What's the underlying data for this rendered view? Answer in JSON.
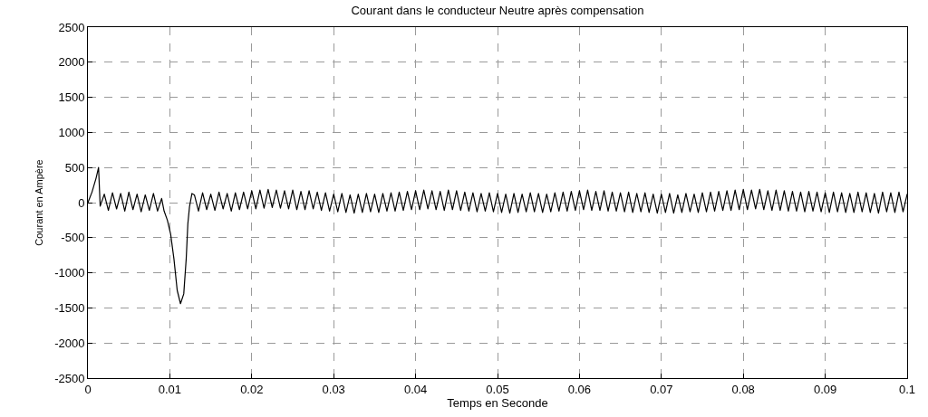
{
  "chart_data": {
    "type": "line",
    "title": "Courant dans le conducteur Neutre après compensation",
    "xlabel": "Temps en Seconde",
    "ylabel": "Courant en Ampère",
    "xlim": [
      0,
      0.1
    ],
    "xticks": [
      0,
      0.01,
      0.02,
      0.03,
      0.04,
      0.05,
      0.06,
      0.07,
      0.08,
      0.09,
      0.1
    ],
    "ylim": [
      -2500,
      2500
    ],
    "yticks": [
      -2500,
      -2000,
      -1500,
      -1000,
      -500,
      0,
      500,
      1000,
      1500,
      2000,
      2500
    ],
    "grid": true,
    "line_style": "solid",
    "series": [
      {
        "color": "#000000",
        "x": [
          0,
          0.0005,
          0.001,
          0.0013,
          0.0015,
          0.002,
          0.0025,
          0.003,
          0.0035,
          0.004,
          0.0045,
          0.005,
          0.0055,
          0.006,
          0.0065,
          0.007,
          0.0075,
          0.008,
          0.0085,
          0.009,
          0.0093,
          0.0097,
          0.0101,
          0.0105,
          0.0109,
          0.0113,
          0.0117,
          0.012,
          0.0122,
          0.0124,
          0.0127,
          0.013,
          0.0135,
          0.014,
          0.0145,
          0.015,
          0.0155,
          0.016,
          0.0165,
          0.017,
          0.0175,
          0.018,
          0.0185,
          0.019,
          0.0195,
          0.02,
          0.0205,
          0.021,
          0.0215,
          0.022,
          0.0225,
          0.023,
          0.0235,
          0.024,
          0.0245,
          0.025,
          0.0255,
          0.026,
          0.0265,
          0.027,
          0.0275,
          0.028,
          0.0285,
          0.029,
          0.0295,
          0.03,
          0.0305,
          0.031,
          0.0315,
          0.032,
          0.0325,
          0.033,
          0.0335,
          0.034,
          0.0345,
          0.035,
          0.0355,
          0.036,
          0.0365,
          0.037,
          0.0375,
          0.038,
          0.0385,
          0.039,
          0.0395,
          0.04,
          0.0405,
          0.041,
          0.0415,
          0.042,
          0.0425,
          0.043,
          0.0435,
          0.044,
          0.0445,
          0.045,
          0.0455,
          0.046,
          0.0465,
          0.047,
          0.0475,
          0.048,
          0.0485,
          0.049,
          0.0495,
          0.05,
          0.0505,
          0.051,
          0.0515,
          0.052,
          0.0525,
          0.053,
          0.0535,
          0.054,
          0.0545,
          0.055,
          0.0555,
          0.056,
          0.0565,
          0.057,
          0.0575,
          0.058,
          0.0585,
          0.059,
          0.0595,
          0.06,
          0.0605,
          0.061,
          0.0615,
          0.062,
          0.0625,
          0.063,
          0.0635,
          0.064,
          0.0645,
          0.065,
          0.0655,
          0.066,
          0.0665,
          0.067,
          0.0675,
          0.068,
          0.0685,
          0.069,
          0.0695,
          0.07,
          0.0705,
          0.071,
          0.0715,
          0.072,
          0.0725,
          0.073,
          0.0735,
          0.074,
          0.0745,
          0.075,
          0.0755,
          0.076,
          0.0765,
          0.077,
          0.0775,
          0.078,
          0.0785,
          0.079,
          0.0795,
          0.08,
          0.0805,
          0.081,
          0.0815,
          0.082,
          0.0825,
          0.083,
          0.0835,
          0.084,
          0.0845,
          0.085,
          0.0855,
          0.086,
          0.0865,
          0.087,
          0.0875,
          0.088,
          0.0885,
          0.089,
          0.0895,
          0.09,
          0.0905,
          0.091,
          0.0915,
          0.092,
          0.0925,
          0.093,
          0.0935,
          0.094,
          0.0945,
          0.095,
          0.0955,
          0.096,
          0.0965,
          0.097,
          0.0975,
          0.098,
          0.0985,
          0.099,
          0.0995,
          0.1
        ],
        "values": [
          0,
          150,
          350,
          500,
          -50,
          120,
          -110,
          140,
          -90,
          130,
          -120,
          150,
          -100,
          120,
          -130,
          110,
          -110,
          130,
          -120,
          60,
          -120,
          -250,
          -450,
          -800,
          -1250,
          -1440,
          -1300,
          -800,
          -300,
          -60,
          130,
          110,
          -120,
          140,
          -100,
          120,
          -110,
          150,
          -90,
          130,
          -120,
          140,
          -100,
          150,
          -90,
          170,
          -90,
          180,
          -80,
          190,
          -70,
          180,
          -80,
          170,
          -90,
          180,
          -100,
          160,
          -100,
          170,
          -90,
          150,
          -110,
          140,
          -120,
          120,
          -130,
          130,
          -140,
          110,
          -150,
          120,
          -140,
          130,
          -130,
          120,
          -140,
          130,
          -120,
          140,
          -120,
          150,
          -110,
          160,
          -100,
          170,
          -100,
          180,
          -90,
          170,
          -100,
          160,
          -110,
          180,
          -100,
          170,
          -110,
          150,
          -120,
          140,
          -130,
          130,
          -120,
          140,
          -130,
          130,
          -140,
          120,
          -150,
          130,
          -140,
          120,
          -130,
          140,
          -130,
          130,
          -140,
          120,
          -130,
          140,
          -120,
          150,
          -120,
          160,
          -110,
          170,
          -100,
          180,
          -110,
          160,
          -110,
          170,
          -120,
          150,
          -120,
          140,
          -130,
          150,
          -140,
          130,
          -130,
          140,
          -140,
          120,
          -150,
          120,
          -140,
          130,
          -150,
          110,
          -140,
          130,
          -130,
          120,
          -140,
          140,
          -130,
          150,
          -120,
          160,
          -110,
          170,
          -110,
          180,
          -100,
          190,
          -100,
          180,
          -90,
          190,
          -100,
          170,
          -110,
          180,
          -110,
          170,
          -120,
          160,
          -120,
          150,
          -130,
          160,
          -120,
          150,
          -130,
          140,
          -140,
          150,
          -130,
          140,
          -140,
          130,
          -140,
          150,
          -130,
          140,
          -140,
          130,
          -150,
          150,
          -130,
          140,
          -140,
          150,
          -130,
          120
        ]
      }
    ]
  }
}
